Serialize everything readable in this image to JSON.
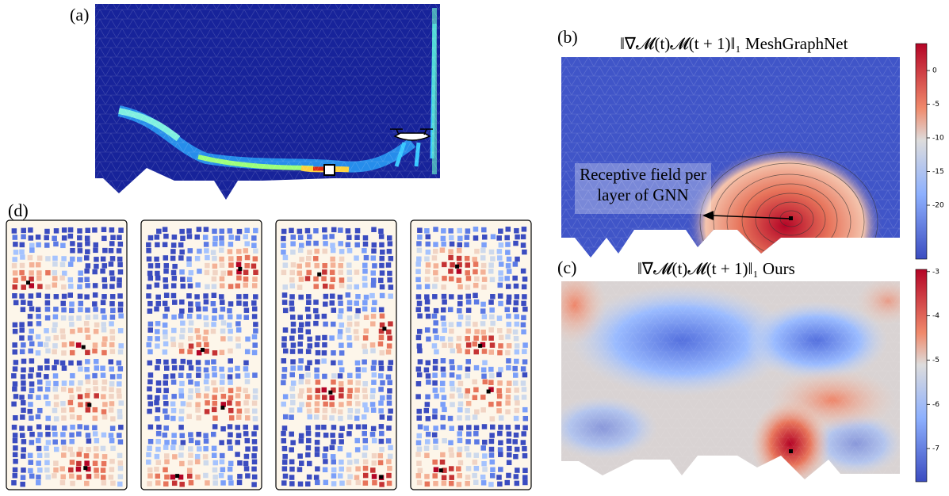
{
  "panels": {
    "a": {
      "label": "(a)"
    },
    "b": {
      "label": "(b)",
      "title": "‖∇𝓜(t)𝓜(t + 1)‖₁ MeshGraphNet",
      "annotation": [
        "Receptive field per",
        "layer of GNN"
      ],
      "colorbar": {
        "range": [
          4,
          -28
        ],
        "ticks": [
          0,
          -5,
          -10,
          -15,
          -20
        ]
      }
    },
    "c": {
      "label": "(c)",
      "title": "‖∇𝓜(t)𝓜(t + 1)‖₁ Ours",
      "colorbar": {
        "range": [
          -2.95,
          -7.75
        ],
        "ticks": [
          -3,
          -4,
          -5,
          -6,
          -7
        ]
      }
    },
    "d": {
      "label": "(d)"
    }
  }
}
